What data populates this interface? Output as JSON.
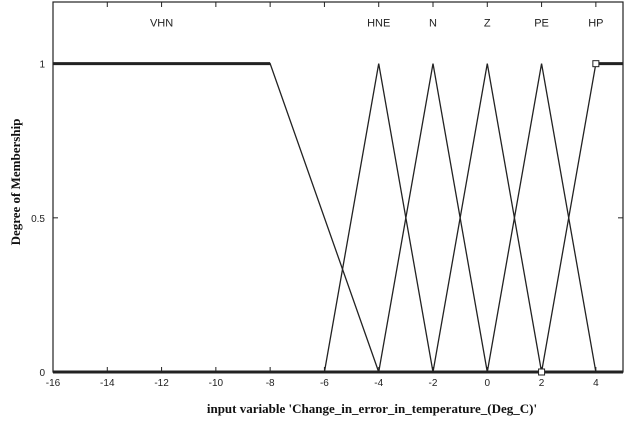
{
  "chart_data": {
    "type": "line",
    "xlabel": "input variable 'Change_in_error_in_temperature_(Deg_C)'",
    "ylabel": "Degree of Membership",
    "xlim": [
      -16,
      5
    ],
    "ylim": [
      0,
      1.2
    ],
    "x_ticks": [
      -16,
      -14,
      -12,
      -10,
      -8,
      -6,
      -4,
      -2,
      0,
      2,
      4
    ],
    "y_ticks": [
      0,
      0.5,
      1
    ],
    "x_tick_labels": [
      "-16",
      "-14",
      "-12",
      "-10",
      "-8",
      "-6",
      "-4",
      "-2",
      "0",
      "2",
      "4"
    ],
    "y_tick_labels": [
      "0",
      "0.5",
      "1"
    ],
    "grid": false,
    "series": [
      {
        "name": "VHN",
        "x": [
          -16,
          -8,
          -4
        ],
        "y": [
          1,
          1,
          0
        ]
      },
      {
        "name": "HNE",
        "x": [
          -6,
          -4,
          -2
        ],
        "y": [
          0,
          1,
          0
        ]
      },
      {
        "name": "N",
        "x": [
          -4,
          -2,
          0
        ],
        "y": [
          0,
          1,
          0
        ]
      },
      {
        "name": "Z",
        "x": [
          -2,
          0,
          2
        ],
        "y": [
          0,
          1,
          0
        ]
      },
      {
        "name": "PE",
        "x": [
          0,
          2,
          4
        ],
        "y": [
          0,
          1,
          0
        ]
      },
      {
        "name": "HP",
        "x": [
          2,
          4,
          5
        ],
        "y": [
          0,
          1,
          1
        ]
      }
    ],
    "markers": [
      {
        "x": 4,
        "y": 1
      },
      {
        "x": 2,
        "y": 0
      }
    ]
  }
}
